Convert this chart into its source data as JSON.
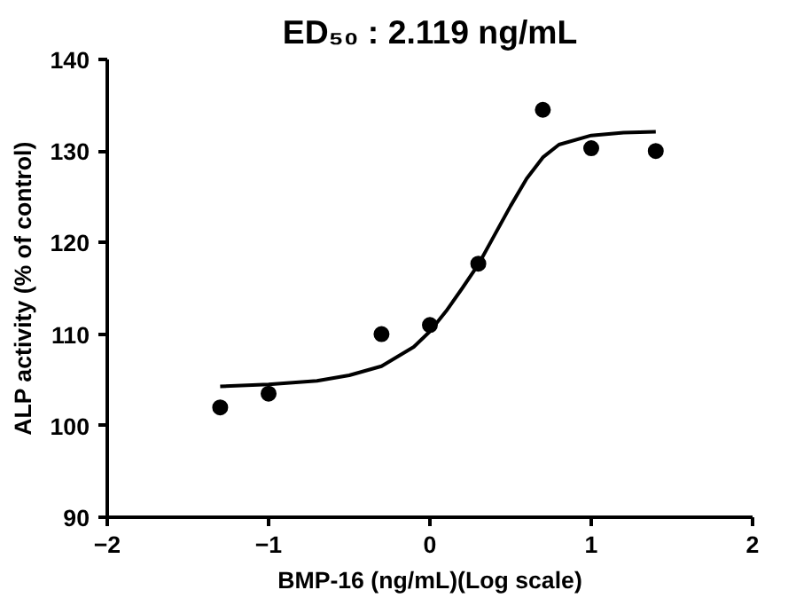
{
  "chart_data": {
    "type": "scatter",
    "title": "ED₅₀ : 2.119 ng/mL",
    "xlabel": "BMP-16 (ng/mL)(Log scale)",
    "ylabel": "ALP activity (% of control)",
    "xlim": [
      -2,
      2
    ],
    "xticks": [
      -2,
      -1,
      0,
      1,
      2
    ],
    "ylim": [
      90,
      140
    ],
    "yticks": [
      90,
      100,
      110,
      120,
      130,
      140
    ],
    "grid": false,
    "series": [
      {
        "marker": "circle",
        "color": "#000000",
        "x": [
          -1.3,
          -1.0,
          -0.3,
          0.0,
          0.3,
          0.7,
          1.0,
          1.4
        ],
        "values": [
          102,
          103.5,
          110,
          111,
          117.7,
          134.5,
          130.3,
          130
        ]
      },
      {
        "type": "line",
        "marker": "none",
        "line_style": "solid",
        "color": "#000000",
        "x": [
          -1.3,
          -1.0,
          -0.7,
          -0.5,
          -0.3,
          -0.1,
          0.0,
          0.1,
          0.2,
          0.3,
          0.4,
          0.5,
          0.6,
          0.7,
          0.8,
          1.0,
          1.2,
          1.4
        ],
        "values": [
          104.3,
          104.5,
          104.9,
          105.5,
          106.5,
          108.6,
          110.3,
          112.5,
          115,
          117.6,
          120.8,
          124,
          127,
          129.3,
          130.7,
          131.7,
          132,
          132.1
        ]
      }
    ]
  }
}
